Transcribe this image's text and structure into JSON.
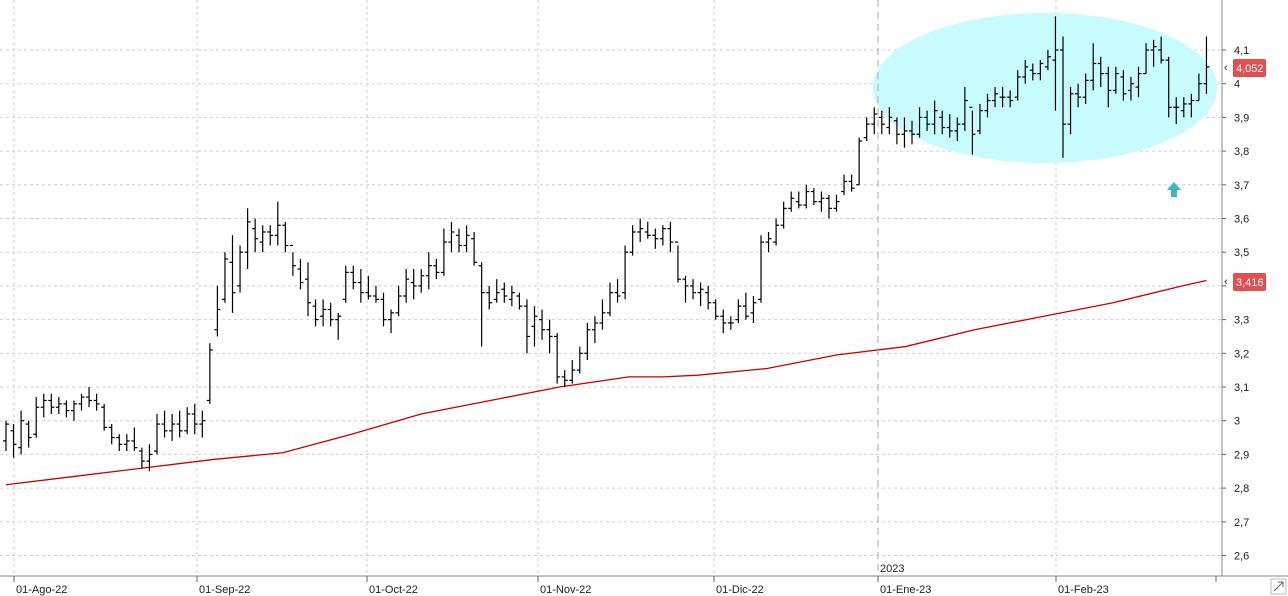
{
  "chart_data": {
    "type": "ohlc-bar",
    "x_labels": [
      "01-Ago-22",
      "01-Sep-22",
      "01-Oct-22",
      "01-Nov-22",
      "01-Dic-22",
      "01-Ene-23",
      "01-Feb-23"
    ],
    "year_marker": "2023",
    "y_ticks": [
      "2,6",
      "2,7",
      "2,8",
      "2,9",
      "3",
      "3,1",
      "3,2",
      "3,3",
      "3,4",
      "3,5",
      "3,6",
      "3,7",
      "3,8",
      "3,9",
      "4",
      "4,1"
    ],
    "ylim": [
      2.55,
      4.2
    ],
    "grid": true,
    "last_price_label": "4,052",
    "last_price": 4.052,
    "moving_average_label": "3,416",
    "moving_average_last": 3.416,
    "colors": {
      "bars": "#000000",
      "moving_average": "#cc0000",
      "price_badge": "#e05050",
      "highlight_ellipse": "#c8fbfd",
      "arrow": "#3cb8b8",
      "grid": "#d0d0d0"
    },
    "annotations": [
      "ellipse-highlight-consolidation",
      "up-arrow"
    ],
    "moving_average": [
      [
        0,
        2.81
      ],
      [
        20,
        2.835
      ],
      [
        40,
        2.86
      ],
      [
        60,
        2.885
      ],
      [
        80,
        2.905
      ],
      [
        100,
        2.96
      ],
      [
        120,
        3.02
      ],
      [
        140,
        3.06
      ],
      [
        160,
        3.1
      ],
      [
        180,
        3.13
      ],
      [
        190,
        3.13
      ],
      [
        200,
        3.135
      ],
      [
        220,
        3.155
      ],
      [
        240,
        3.195
      ],
      [
        260,
        3.22
      ],
      [
        280,
        3.27
      ],
      [
        300,
        3.31
      ],
      [
        320,
        3.35
      ],
      [
        340,
        3.4
      ],
      [
        347,
        3.416
      ]
    ],
    "bars": [
      [
        0,
        3.0,
        2.91,
        2.94,
        2.99
      ],
      [
        1,
        2.99,
        2.89,
        2.97,
        2.93
      ],
      [
        2,
        3.03,
        2.9,
        2.92,
        3.0
      ],
      [
        3,
        3.0,
        2.92,
        2.99,
        2.95
      ],
      [
        4,
        3.07,
        2.95,
        2.96,
        3.04
      ],
      [
        5,
        3.08,
        3.01,
        3.04,
        3.06
      ],
      [
        6,
        3.08,
        3.02,
        3.06,
        3.04
      ],
      [
        7,
        3.07,
        3.02,
        3.04,
        3.05
      ],
      [
        8,
        3.06,
        3.01,
        3.05,
        3.03
      ],
      [
        9,
        3.06,
        3.0,
        3.03,
        3.05
      ],
      [
        10,
        3.08,
        3.03,
        3.05,
        3.07
      ],
      [
        11,
        3.1,
        3.04,
        3.07,
        3.06
      ],
      [
        12,
        3.08,
        3.03,
        3.06,
        3.05
      ],
      [
        13,
        3.05,
        2.97,
        3.04,
        2.98
      ],
      [
        14,
        2.99,
        2.93,
        2.98,
        2.95
      ],
      [
        15,
        2.96,
        2.91,
        2.95,
        2.93
      ],
      [
        16,
        2.96,
        2.91,
        2.93,
        2.94
      ],
      [
        17,
        2.98,
        2.91,
        2.94,
        2.92
      ],
      [
        18,
        2.92,
        2.86,
        2.91,
        2.88
      ],
      [
        19,
        2.93,
        2.85,
        2.88,
        2.9
      ],
      [
        20,
        3.02,
        2.9,
        2.91,
        2.99
      ],
      [
        21,
        3.03,
        2.95,
        2.99,
        2.97
      ],
      [
        22,
        3.02,
        2.94,
        2.97,
        2.99
      ],
      [
        23,
        3.03,
        2.95,
        2.99,
        2.97
      ],
      [
        24,
        3.04,
        2.96,
        2.97,
        3.02
      ],
      [
        25,
        3.05,
        2.96,
        3.02,
        2.99
      ],
      [
        26,
        3.03,
        2.95,
        2.99,
        3.0
      ],
      [
        27,
        3.23,
        3.05,
        3.06,
        3.21
      ],
      [
        28,
        3.4,
        3.25,
        3.27,
        3.33
      ],
      [
        29,
        3.5,
        3.35,
        3.36,
        3.48
      ],
      [
        30,
        3.55,
        3.32,
        3.47,
        3.38
      ],
      [
        31,
        3.52,
        3.38,
        3.4,
        3.5
      ],
      [
        32,
        3.63,
        3.45,
        3.5,
        3.59
      ],
      [
        33,
        3.6,
        3.5,
        3.57,
        3.54
      ],
      [
        34,
        3.58,
        3.5,
        3.53,
        3.56
      ],
      [
        35,
        3.58,
        3.52,
        3.56,
        3.55
      ],
      [
        36,
        3.65,
        3.52,
        3.55,
        3.58
      ],
      [
        37,
        3.59,
        3.5,
        3.58,
        3.52
      ],
      [
        38,
        3.5,
        3.43,
        3.52,
        3.46
      ],
      [
        39,
        3.48,
        3.39,
        3.45,
        3.41
      ],
      [
        40,
        3.47,
        3.31,
        3.42,
        3.35
      ],
      [
        41,
        3.36,
        3.28,
        3.34,
        3.3
      ],
      [
        42,
        3.36,
        3.28,
        3.31,
        3.33
      ],
      [
        43,
        3.35,
        3.28,
        3.33,
        3.3
      ],
      [
        44,
        3.32,
        3.24,
        3.3,
        3.31
      ],
      [
        45,
        3.46,
        3.35,
        3.36,
        3.44
      ],
      [
        46,
        3.46,
        3.39,
        3.44,
        3.41
      ],
      [
        47,
        3.45,
        3.35,
        3.41,
        3.38
      ],
      [
        48,
        3.43,
        3.36,
        3.38,
        3.37
      ],
      [
        49,
        3.4,
        3.35,
        3.37,
        3.36
      ],
      [
        50,
        3.38,
        3.28,
        3.36,
        3.3
      ],
      [
        51,
        3.33,
        3.26,
        3.3,
        3.32
      ],
      [
        52,
        3.4,
        3.31,
        3.32,
        3.37
      ],
      [
        53,
        3.45,
        3.35,
        3.37,
        3.42
      ],
      [
        54,
        3.45,
        3.36,
        3.41,
        3.4
      ],
      [
        55,
        3.45,
        3.38,
        3.4,
        3.43
      ],
      [
        56,
        3.5,
        3.39,
        3.43,
        3.46
      ],
      [
        57,
        3.48,
        3.42,
        3.46,
        3.44
      ],
      [
        58,
        3.57,
        3.43,
        3.44,
        3.53
      ],
      [
        59,
        3.59,
        3.5,
        3.53,
        3.56
      ],
      [
        60,
        3.57,
        3.5,
        3.55,
        3.52
      ],
      [
        61,
        3.58,
        3.5,
        3.52,
        3.55
      ],
      [
        62,
        3.56,
        3.46,
        3.54,
        3.47
      ],
      [
        63,
        3.47,
        3.22,
        3.46,
        3.38
      ],
      [
        64,
        3.4,
        3.33,
        3.38,
        3.35
      ],
      [
        65,
        3.42,
        3.35,
        3.36,
        3.38
      ],
      [
        66,
        3.41,
        3.35,
        3.39,
        3.37
      ],
      [
        67,
        3.4,
        3.34,
        3.36,
        3.38
      ],
      [
        68,
        3.38,
        3.33,
        3.37,
        3.34
      ],
      [
        69,
        3.36,
        3.2,
        3.34,
        3.25
      ],
      [
        70,
        3.34,
        3.22,
        3.28,
        3.31
      ],
      [
        71,
        3.33,
        3.24,
        3.3,
        3.27
      ],
      [
        72,
        3.3,
        3.2,
        3.27,
        3.25
      ],
      [
        73,
        3.26,
        3.11,
        3.25,
        3.13
      ],
      [
        74,
        3.15,
        3.1,
        3.13,
        3.12
      ],
      [
        75,
        3.18,
        3.11,
        3.12,
        3.15
      ],
      [
        76,
        3.22,
        3.14,
        3.15,
        3.2
      ],
      [
        77,
        3.29,
        3.18,
        3.2,
        3.27
      ],
      [
        78,
        3.31,
        3.23,
        3.27,
        3.29
      ],
      [
        79,
        3.36,
        3.27,
        3.29,
        3.32
      ],
      [
        80,
        3.41,
        3.31,
        3.32,
        3.38
      ],
      [
        81,
        3.42,
        3.35,
        3.38,
        3.37
      ],
      [
        82,
        3.52,
        3.36,
        3.38,
        3.5
      ],
      [
        83,
        3.58,
        3.49,
        3.5,
        3.56
      ],
      [
        84,
        3.6,
        3.53,
        3.56,
        3.57
      ],
      [
        85,
        3.59,
        3.54,
        3.56,
        3.55
      ],
      [
        86,
        3.57,
        3.51,
        3.55,
        3.54
      ],
      [
        87,
        3.58,
        3.52,
        3.54,
        3.57
      ],
      [
        88,
        3.59,
        3.5,
        3.57,
        3.53
      ],
      [
        89,
        3.52,
        3.41,
        3.53,
        3.42
      ],
      [
        90,
        3.43,
        3.35,
        3.42,
        3.4
      ],
      [
        91,
        3.42,
        3.36,
        3.4,
        3.38
      ],
      [
        92,
        3.41,
        3.34,
        3.38,
        3.39
      ],
      [
        93,
        3.4,
        3.33,
        3.38,
        3.35
      ],
      [
        94,
        3.36,
        3.3,
        3.35,
        3.31
      ],
      [
        95,
        3.33,
        3.26,
        3.31,
        3.29
      ],
      [
        96,
        3.31,
        3.27,
        3.29,
        3.29
      ],
      [
        97,
        3.36,
        3.29,
        3.3,
        3.34
      ],
      [
        98,
        3.38,
        3.3,
        3.34,
        3.31
      ],
      [
        99,
        3.37,
        3.29,
        3.32,
        3.35
      ],
      [
        100,
        3.55,
        3.35,
        3.36,
        3.53
      ],
      [
        101,
        3.56,
        3.5,
        3.53,
        3.54
      ],
      [
        102,
        3.6,
        3.52,
        3.53,
        3.58
      ],
      [
        103,
        3.65,
        3.57,
        3.58,
        3.63
      ],
      [
        104,
        3.68,
        3.62,
        3.63,
        3.66
      ],
      [
        105,
        3.68,
        3.63,
        3.65,
        3.64
      ],
      [
        106,
        3.7,
        3.63,
        3.64,
        3.68
      ],
      [
        107,
        3.69,
        3.64,
        3.68,
        3.65
      ],
      [
        108,
        3.68,
        3.62,
        3.65,
        3.66
      ],
      [
        109,
        3.67,
        3.6,
        3.66,
        3.63
      ],
      [
        110,
        3.67,
        3.62,
        3.63,
        3.65
      ],
      [
        111,
        3.73,
        3.67,
        3.68,
        3.71
      ],
      [
        112,
        3.73,
        3.68,
        3.71,
        3.69
      ],
      [
        113,
        3.84,
        3.7,
        3.7,
        3.83
      ],
      [
        114,
        3.9,
        3.83,
        3.84,
        3.88
      ],
      [
        115,
        3.93,
        3.85,
        3.88,
        3.91
      ],
      [
        116,
        3.92,
        3.85,
        3.9,
        3.88
      ],
      [
        117,
        3.93,
        3.85,
        3.87,
        3.9
      ],
      [
        118,
        3.9,
        3.82,
        3.89,
        3.85
      ],
      [
        119,
        3.9,
        3.81,
        3.85,
        3.86
      ],
      [
        120,
        3.89,
        3.82,
        3.86,
        3.85
      ],
      [
        121,
        3.93,
        3.84,
        3.85,
        3.9
      ],
      [
        122,
        3.92,
        3.86,
        3.9,
        3.88
      ],
      [
        123,
        3.95,
        3.85,
        3.88,
        3.92
      ],
      [
        124,
        3.92,
        3.85,
        3.9,
        3.87
      ],
      [
        125,
        3.91,
        3.84,
        3.87,
        3.86
      ],
      [
        126,
        3.9,
        3.83,
        3.86,
        3.88
      ],
      [
        127,
        3.99,
        3.86,
        3.88,
        3.95
      ],
      [
        128,
        3.92,
        3.79,
        3.93,
        3.85
      ],
      [
        129,
        3.94,
        3.85,
        3.86,
        3.92
      ],
      [
        130,
        3.97,
        3.9,
        3.92,
        3.95
      ],
      [
        131,
        3.99,
        3.93,
        3.95,
        3.97
      ],
      [
        132,
        3.99,
        3.93,
        3.96,
        3.96
      ],
      [
        133,
        3.98,
        3.93,
        3.96,
        3.95
      ],
      [
        134,
        4.04,
        3.95,
        3.96,
        4.02
      ],
      [
        135,
        4.07,
        4.0,
        4.02,
        4.05
      ],
      [
        136,
        4.06,
        4.01,
        4.04,
        4.03
      ],
      [
        137,
        4.07,
        4.01,
        4.03,
        4.06
      ],
      [
        138,
        4.1,
        4.04,
        4.05,
        4.08
      ],
      [
        139,
        4.2,
        3.92,
        4.07,
        4.1
      ],
      [
        140,
        4.14,
        3.78,
        4.1,
        3.88
      ],
      [
        141,
        3.99,
        3.85,
        3.88,
        3.97
      ],
      [
        142,
        4.0,
        3.93,
        3.97,
        3.96
      ],
      [
        143,
        4.03,
        3.94,
        3.96,
        4.01
      ],
      [
        144,
        4.12,
        3.98,
        4.01,
        4.06
      ],
      [
        145,
        4.08,
        3.99,
        4.06,
        4.03
      ],
      [
        146,
        4.05,
        3.93,
        4.03,
        3.98
      ],
      [
        147,
        4.05,
        3.97,
        3.98,
        4.03
      ],
      [
        148,
        4.04,
        3.95,
        4.02,
        3.97
      ],
      [
        149,
        4.02,
        3.95,
        3.98,
        4.0
      ],
      [
        150,
        4.05,
        3.96,
        3.99,
        4.03
      ],
      [
        151,
        4.12,
        4.03,
        4.03,
        4.1
      ],
      [
        152,
        4.13,
        4.05,
        4.1,
        4.11
      ],
      [
        153,
        4.14,
        4.06,
        4.1,
        4.07
      ],
      [
        154,
        4.08,
        3.9,
        4.07,
        3.93
      ],
      [
        155,
        3.96,
        3.88,
        3.93,
        3.93
      ],
      [
        156,
        3.96,
        3.9,
        3.92,
        3.94
      ],
      [
        157,
        3.97,
        3.9,
        3.94,
        3.95
      ],
      [
        158,
        4.03,
        3.95,
        3.95,
        4.0
      ],
      [
        159,
        4.14,
        3.97,
        4.0,
        4.05
      ]
    ]
  }
}
